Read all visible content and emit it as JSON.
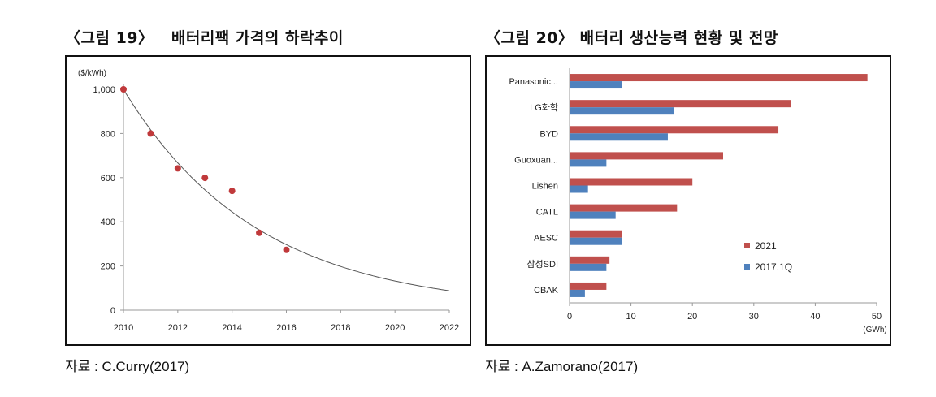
{
  "figure19": {
    "title": "〈그림 19〉   배터리팩 가격의 하락추이",
    "source": "자료 :  C.Curry(2017)"
  },
  "figure20": {
    "title": "〈그림 20〉 배터리 생산능력 현황 및 전망",
    "source": "자료 :  A.Zamorano(2017)"
  },
  "chart_data": [
    {
      "type": "scatter",
      "title": "",
      "ylabel": "($/kWh)",
      "xlabel": "",
      "xlim": [
        2010,
        2022
      ],
      "ylim": [
        0,
        1000
      ],
      "xticks": [
        2010,
        2012,
        2014,
        2016,
        2018,
        2020,
        2022
      ],
      "yticks": [
        0,
        200,
        400,
        600,
        800,
        1000
      ],
      "ytick_labels": [
        "0",
        "200",
        "400",
        "600",
        "800",
        "1,000"
      ],
      "points": [
        {
          "x": 2010,
          "y": 1000
        },
        {
          "x": 2011,
          "y": 800
        },
        {
          "x": 2012,
          "y": 642
        },
        {
          "x": 2013,
          "y": 599
        },
        {
          "x": 2014,
          "y": 540
        },
        {
          "x": 2015,
          "y": 350
        },
        {
          "x": 2016,
          "y": 273
        }
      ],
      "trendline": {
        "type": "exponential",
        "from": 2010,
        "to": 2022,
        "start_value": 1000,
        "end_value": 88
      },
      "colors": {
        "points": "#c0393b",
        "trend": "#555555"
      },
      "grid": false
    },
    {
      "type": "bar",
      "orientation": "horizontal",
      "title": "",
      "xlabel": "(GWh)",
      "xlim": [
        0,
        50
      ],
      "xticks": [
        0,
        10,
        20,
        30,
        40,
        50
      ],
      "categories": [
        "Panasonic...",
        "LG화학",
        "BYD",
        "Guoxuan...",
        "Lishen",
        "CATL",
        "AESC",
        "삼성SDI",
        "CBAK"
      ],
      "series": [
        {
          "name": "2021",
          "color": "#c0504d",
          "values": [
            48.5,
            36,
            34,
            25,
            20,
            17.5,
            8.5,
            6.5,
            6
          ]
        },
        {
          "name": "2017.1Q",
          "color": "#4f81bd",
          "values": [
            8.5,
            17,
            16,
            6,
            3,
            7.5,
            8.5,
            6,
            2.5
          ]
        }
      ],
      "legend_position": "bottom-right",
      "grid": false
    }
  ]
}
